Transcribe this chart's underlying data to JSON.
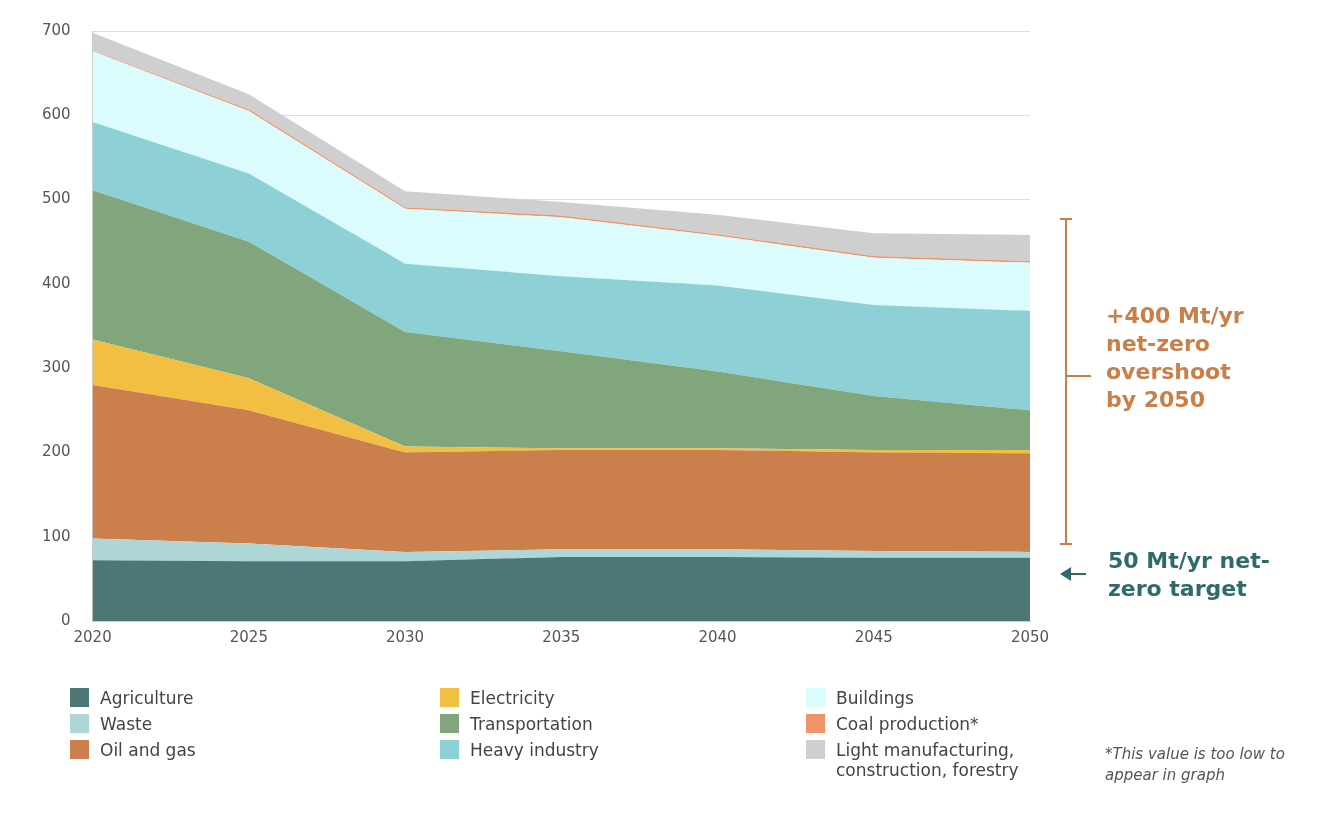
{
  "chart_data": {
    "type": "area",
    "stacked": true,
    "x": [
      2020,
      2025,
      2030,
      2035,
      2040,
      2045,
      2050
    ],
    "xlim": [
      2020,
      2050
    ],
    "xticks": [
      2020,
      2025,
      2030,
      2035,
      2040,
      2045,
      2050
    ],
    "ylim": [
      0,
      700
    ],
    "yticks": [
      0,
      100,
      200,
      300,
      400,
      500,
      600,
      700
    ],
    "grid": "y",
    "legend": "bottom",
    "marker": "none",
    "series": [
      {
        "name": "Agriculture",
        "color": "#4d7775",
        "values": [
          72,
          71,
          71,
          76,
          76,
          75,
          75
        ]
      },
      {
        "name": "Waste",
        "color": "#aed6d6",
        "values": [
          26,
          21,
          11,
          9,
          9,
          8,
          7
        ]
      },
      {
        "name": "Oil and gas",
        "color": "#cb7f4c",
        "values": [
          182,
          158,
          118,
          118,
          118,
          117,
          117
        ]
      },
      {
        "name": "Electricity",
        "color": "#f2bf42",
        "values": [
          54,
          38,
          7,
          2,
          2,
          3,
          4
        ]
      },
      {
        "name": "Transportation",
        "color": "#82a67c",
        "values": [
          177,
          162,
          136,
          115,
          91,
          64,
          47
        ]
      },
      {
        "name": "Heavy industry",
        "color": "#8dd1d6",
        "values": [
          81,
          81,
          81,
          89,
          102,
          108,
          118
        ]
      },
      {
        "name": "Buildings",
        "color": "#dafcfd",
        "values": [
          84,
          74,
          65,
          70,
          59,
          56,
          57
        ]
      },
      {
        "name": "Coal production*",
        "color": "#f0946a",
        "values": [
          1,
          2,
          2,
          2,
          2,
          2,
          2
        ]
      },
      {
        "name": "Light manufacturing, construction, forestry",
        "color": "#d0cfd0",
        "values": [
          21,
          18,
          19,
          16,
          23,
          27,
          31
        ]
      }
    ],
    "annotations": [
      "+400 Mt/yr net-zero overshoot by 2050",
      "50 Mt/yr net-zero target",
      "*This value is too low to appear in graph"
    ]
  }
}
